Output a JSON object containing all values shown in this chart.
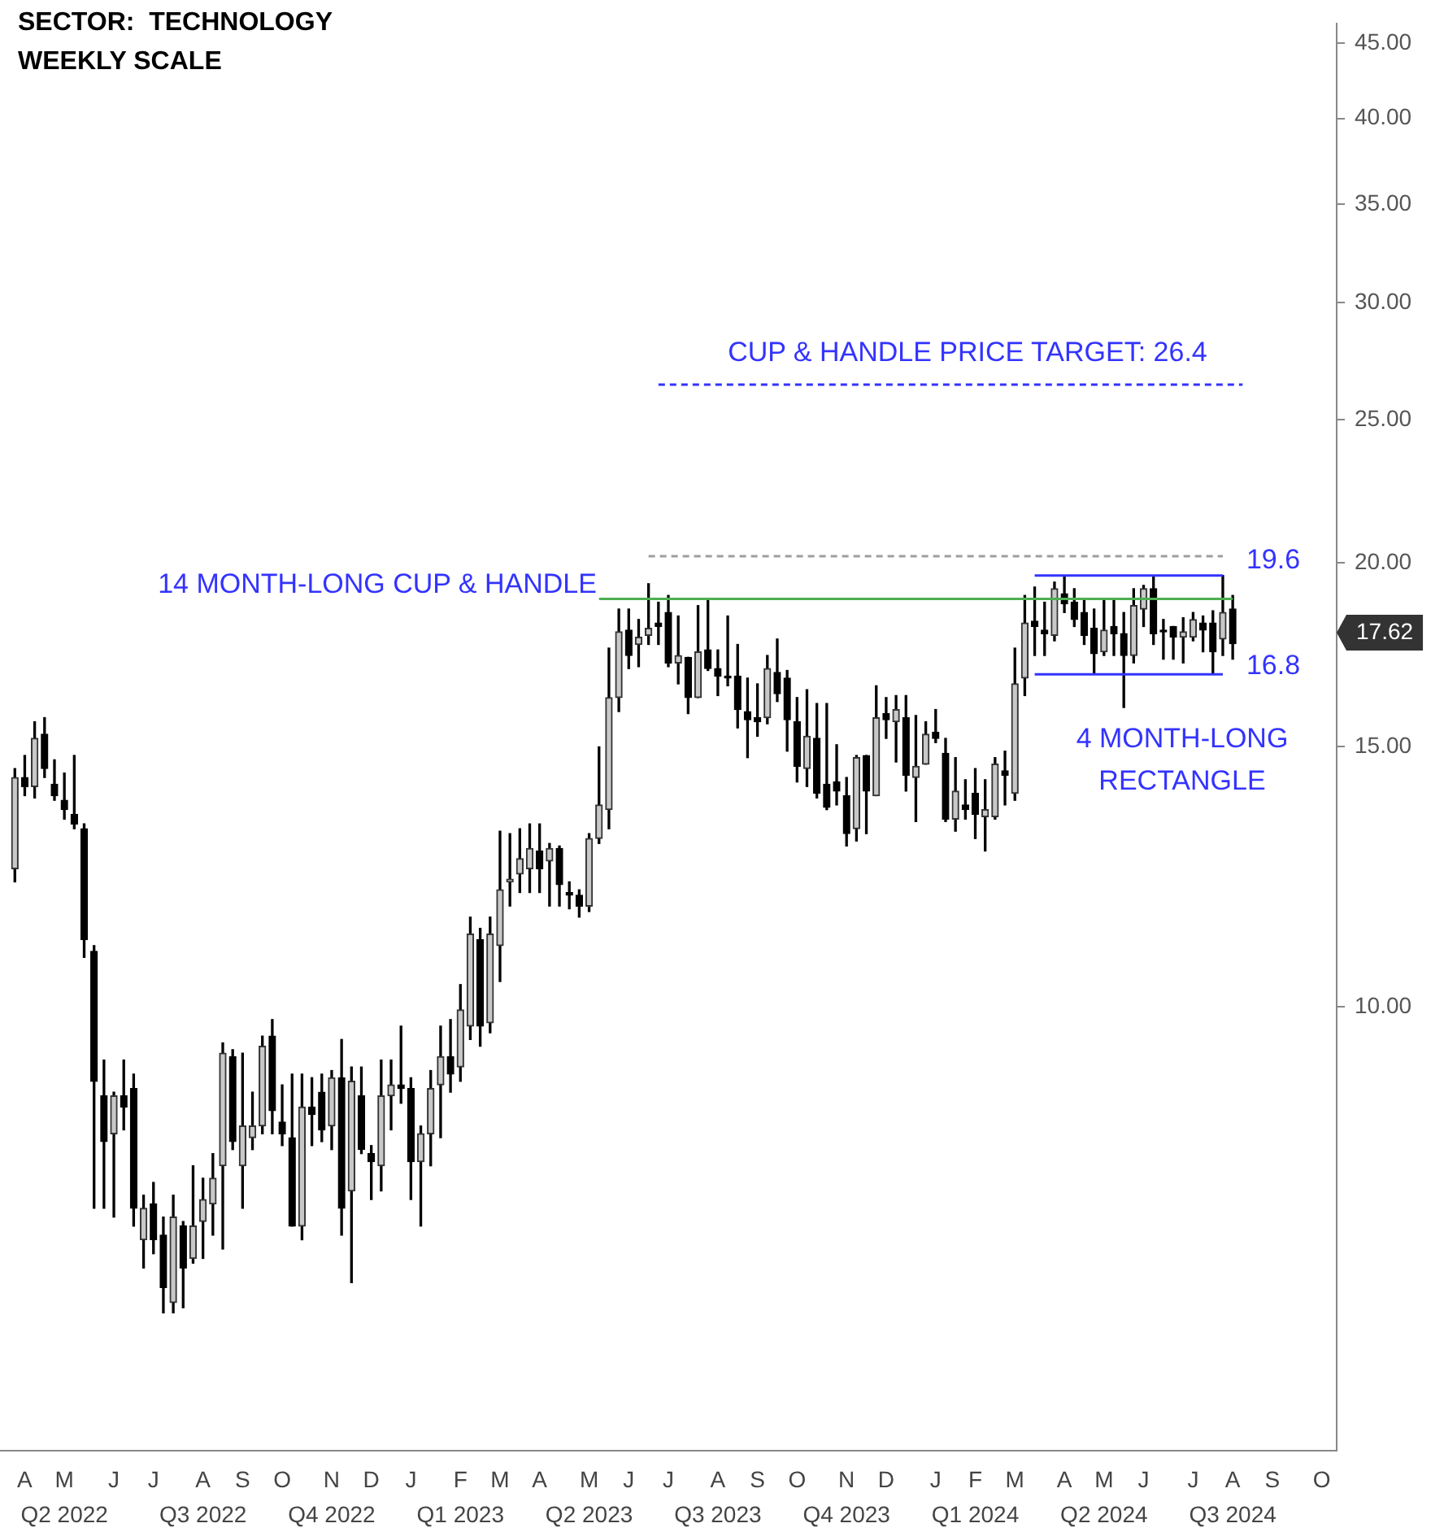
{
  "chart_data": {
    "type": "candlestick",
    "annotations": [
      "SECTOR:  TECHNOLOGY",
      "WEEKLY SCALE",
      "14 MONTH-LONG CUP & HANDLE",
      {
        "text": "CUP & HANDLE PRICE TARGET: 26.4",
        "y": 26.4
      },
      "19.6",
      "16.8",
      "4 MONTH-LONG RECTANGLE",
      "17.62",
      "Q2 2022",
      "Q3 2022",
      "Q4 2022",
      "Q1 2023",
      "Q2 2023",
      "Q3 2023",
      "Q4 2023",
      "Q1 2024",
      "Q2 2024",
      "Q3 2024"
    ],
    "categories": [
      null,
      null,
      "A",
      null,
      null,
      null,
      "M",
      null,
      null,
      null,
      null,
      "J",
      null,
      null,
      null,
      "J",
      null,
      null,
      null,
      null,
      "A",
      null,
      null,
      null,
      "S",
      null,
      null,
      null,
      "O",
      null,
      null,
      null,
      null,
      "N",
      null,
      null,
      null,
      "D",
      null,
      null,
      null,
      "J",
      null,
      null,
      null,
      null,
      "F",
      null,
      null,
      null,
      "M",
      null,
      null,
      null,
      "A",
      null,
      null,
      null,
      null,
      "M",
      null,
      null,
      null,
      "J",
      null,
      null,
      null,
      "J",
      null,
      null,
      null,
      null,
      "A",
      null,
      null,
      null,
      "S",
      null,
      null,
      null,
      "O",
      null,
      null,
      null,
      null,
      "N",
      null,
      null,
      null,
      "D",
      null,
      null,
      null,
      null,
      "J",
      null,
      null,
      null,
      "F",
      null,
      null,
      null,
      "M",
      null,
      null,
      null,
      null,
      "A",
      null,
      null,
      null,
      "M",
      null,
      null,
      null,
      "J",
      null,
      null,
      null,
      null,
      "J",
      null,
      null,
      null,
      "A",
      null,
      null,
      null,
      "S",
      null,
      null,
      null,
      null,
      "O",
      null
    ],
    "ohlc": [
      null,
      [
        12.4,
        14.5,
        12.15,
        14.3
      ],
      [
        14.3,
        14.8,
        13.9,
        14.1
      ],
      [
        14.1,
        15.6,
        13.85,
        15.2
      ],
      [
        15.3,
        15.7,
        14.3,
        14.5
      ],
      [
        14.15,
        14.7,
        13.8,
        13.9
      ],
      [
        13.8,
        14.4,
        13.4,
        13.6
      ],
      [
        13.5,
        14.8,
        13.2,
        13.3
      ],
      [
        13.2,
        13.3,
        10.8,
        11.1
      ],
      [
        10.9,
        11.0,
        7.3,
        8.9
      ],
      [
        8.7,
        9.2,
        7.3,
        8.1
      ],
      [
        8.2,
        8.75,
        7.2,
        8.7
      ],
      [
        8.7,
        9.2,
        8.25,
        8.55
      ],
      [
        8.8,
        9.0,
        7.1,
        7.3
      ],
      [
        6.95,
        7.45,
        6.65,
        7.3
      ],
      [
        7.35,
        7.6,
        6.8,
        6.95
      ],
      [
        7.0,
        7.2,
        6.2,
        6.45
      ],
      [
        6.3,
        7.45,
        6.2,
        7.2
      ],
      [
        7.1,
        7.15,
        6.25,
        6.65
      ],
      [
        6.75,
        7.8,
        6.7,
        7.1
      ],
      [
        7.15,
        7.65,
        6.75,
        7.4
      ],
      [
        7.35,
        7.95,
        7.0,
        7.65
      ],
      [
        7.8,
        9.45,
        6.85,
        9.3
      ],
      [
        9.25,
        9.35,
        8.0,
        8.1
      ],
      [
        7.8,
        9.3,
        7.3,
        8.3
      ],
      [
        8.15,
        8.75,
        8.0,
        8.3
      ],
      [
        8.3,
        9.55,
        8.2,
        9.4
      ],
      [
        9.55,
        9.8,
        8.2,
        8.5
      ],
      [
        8.35,
        8.85,
        8.05,
        8.2
      ],
      [
        8.15,
        9.0,
        7.1,
        7.1
      ],
      [
        7.1,
        9.0,
        6.95,
        8.55
      ],
      [
        8.55,
        8.95,
        8.05,
        8.45
      ],
      [
        8.75,
        9.0,
        8.1,
        8.25
      ],
      [
        8.3,
        9.05,
        8.0,
        8.95
      ],
      [
        8.95,
        9.5,
        7.0,
        7.3
      ],
      [
        7.5,
        9.1,
        6.5,
        8.9
      ],
      [
        8.7,
        9.1,
        7.95,
        8.0
      ],
      [
        7.95,
        8.05,
        7.4,
        7.85
      ],
      [
        7.8,
        9.2,
        7.5,
        8.7
      ],
      [
        8.7,
        9.2,
        8.25,
        8.85
      ],
      [
        8.85,
        9.7,
        8.6,
        8.8
      ],
      [
        8.8,
        8.95,
        7.4,
        7.85
      ],
      [
        7.85,
        8.3,
        7.1,
        8.2
      ],
      [
        8.2,
        9.05,
        7.8,
        8.8
      ],
      [
        8.85,
        9.7,
        8.15,
        9.25
      ],
      [
        9.25,
        9.8,
        8.75,
        9.0
      ],
      [
        9.1,
        10.35,
        8.9,
        9.95
      ],
      [
        9.7,
        11.5,
        9.5,
        11.2
      ],
      [
        11.1,
        11.3,
        9.4,
        9.7
      ],
      [
        9.75,
        11.5,
        9.6,
        11.2
      ],
      [
        11.0,
        13.15,
        10.4,
        12.0
      ],
      [
        12.15,
        13.1,
        11.7,
        12.2
      ],
      [
        12.3,
        13.2,
        11.95,
        12.6
      ],
      [
        12.4,
        13.3,
        11.95,
        12.8
      ],
      [
        12.75,
        13.3,
        11.95,
        12.4
      ],
      [
        12.55,
        12.9,
        11.7,
        12.8
      ],
      [
        12.8,
        12.85,
        11.7,
        12.1
      ],
      [
        11.95,
        12.15,
        11.65,
        11.9
      ],
      [
        11.9,
        12.0,
        11.5,
        11.7
      ],
      [
        11.7,
        13.1,
        11.6,
        13.0
      ],
      [
        13.0,
        15.0,
        12.9,
        13.7
      ],
      [
        13.6,
        17.5,
        13.2,
        16.2
      ],
      [
        16.2,
        18.6,
        15.85,
        17.95
      ],
      [
        18.0,
        18.6,
        16.95,
        17.3
      ],
      [
        17.6,
        18.3,
        17.0,
        17.8
      ],
      [
        17.85,
        19.35,
        17.6,
        18.05
      ],
      [
        18.2,
        18.8,
        17.6,
        18.1
      ],
      [
        18.5,
        19.0,
        17.0,
        17.1
      ],
      [
        17.1,
        18.4,
        16.55,
        17.3
      ],
      [
        17.25,
        17.25,
        15.8,
        16.2
      ],
      [
        16.2,
        18.7,
        16.2,
        17.4
      ],
      [
        17.45,
        18.9,
        16.9,
        16.95
      ],
      [
        16.95,
        17.45,
        16.25,
        16.75
      ],
      [
        16.75,
        18.4,
        16.5,
        16.7
      ],
      [
        16.75,
        17.6,
        15.45,
        15.9
      ],
      [
        15.85,
        16.7,
        14.75,
        15.65
      ],
      [
        15.7,
        16.55,
        15.25,
        15.6
      ],
      [
        15.7,
        17.3,
        15.55,
        16.95
      ],
      [
        16.85,
        17.75,
        16.1,
        16.3
      ],
      [
        16.7,
        16.9,
        14.9,
        15.65
      ],
      [
        15.6,
        16.2,
        14.2,
        14.55
      ],
      [
        14.5,
        16.4,
        14.1,
        15.25
      ],
      [
        15.2,
        16.05,
        13.85,
        13.95
      ],
      [
        14.15,
        16.05,
        13.6,
        13.65
      ],
      [
        14.2,
        15.05,
        13.7,
        14.0
      ],
      [
        13.9,
        14.3,
        12.85,
        13.1
      ],
      [
        13.2,
        14.8,
        12.95,
        14.75
      ],
      [
        14.8,
        14.8,
        13.1,
        14.0
      ],
      [
        13.9,
        16.5,
        13.9,
        15.7
      ],
      [
        15.8,
        16.2,
        15.2,
        15.65
      ],
      [
        15.6,
        16.25,
        14.65,
        15.9
      ],
      [
        15.7,
        16.25,
        14.0,
        14.35
      ],
      [
        14.3,
        15.75,
        13.35,
        14.55
      ],
      [
        14.6,
        15.6,
        14.6,
        15.3
      ],
      [
        15.35,
        15.9,
        15.1,
        15.2
      ],
      [
        14.85,
        15.2,
        13.35,
        13.4
      ],
      [
        13.4,
        14.75,
        13.15,
        14.0
      ],
      [
        13.7,
        14.25,
        13.4,
        13.6
      ],
      [
        13.95,
        14.5,
        13.0,
        13.5
      ],
      [
        13.45,
        14.25,
        12.75,
        13.6
      ],
      [
        13.45,
        14.75,
        13.4,
        14.6
      ],
      [
        14.45,
        14.9,
        13.7,
        14.35
      ],
      [
        13.95,
        17.5,
        13.8,
        16.55
      ],
      [
        16.7,
        19.0,
        16.25,
        18.2
      ],
      [
        18.25,
        19.25,
        17.3,
        18.1
      ],
      [
        18.0,
        18.8,
        17.3,
        17.9
      ],
      [
        17.85,
        19.4,
        17.7,
        19.2
      ],
      [
        19.05,
        19.6,
        18.5,
        18.75
      ],
      [
        18.8,
        19.2,
        18.1,
        18.3
      ],
      [
        18.5,
        18.9,
        17.6,
        17.85
      ],
      [
        18.05,
        18.6,
        16.8,
        17.35
      ],
      [
        17.4,
        18.9,
        17.3,
        18.0
      ],
      [
        18.1,
        18.9,
        17.3,
        17.9
      ],
      [
        17.9,
        18.5,
        15.95,
        17.3
      ],
      [
        17.3,
        19.2,
        17.1,
        18.7
      ],
      [
        18.6,
        19.3,
        18.1,
        19.2
      ],
      [
        19.2,
        19.6,
        17.6,
        17.9
      ],
      [
        18.0,
        18.3,
        17.2,
        17.95
      ],
      [
        18.1,
        18.1,
        17.2,
        17.8
      ],
      [
        17.8,
        18.35,
        17.1,
        17.95
      ],
      [
        17.8,
        18.5,
        17.7,
        18.3
      ],
      [
        18.2,
        18.4,
        17.4,
        18.0
      ],
      [
        18.2,
        18.55,
        16.8,
        17.4
      ],
      [
        17.75,
        19.6,
        17.3,
        18.5
      ],
      [
        18.6,
        19.0,
        17.2,
        17.62
      ],
      null,
      null,
      null,
      null,
      null,
      null,
      null,
      null,
      null,
      null
    ],
    "series": [
      {
        "type": "line",
        "color": "#4caf50",
        "line_style": "solid",
        "values": [
          null,
          null,
          null,
          null,
          null,
          null,
          null,
          null,
          null,
          null,
          null,
          null,
          null,
          null,
          null,
          null,
          null,
          null,
          null,
          null,
          null,
          null,
          null,
          null,
          null,
          null,
          null,
          null,
          null,
          null,
          null,
          null,
          null,
          null,
          null,
          null,
          null,
          null,
          null,
          null,
          null,
          null,
          null,
          null,
          null,
          null,
          null,
          null,
          null,
          null,
          null,
          null,
          null,
          null,
          null,
          null,
          null,
          null,
          null,
          null,
          18.9,
          18.9,
          18.9,
          18.9,
          18.9,
          18.9,
          18.9,
          18.9,
          18.9,
          18.9,
          18.9,
          18.9,
          18.9,
          18.9,
          18.9,
          18.9,
          18.9,
          18.9,
          18.9,
          18.9,
          18.9,
          18.9,
          18.9,
          18.9,
          18.9,
          18.9,
          18.9,
          18.9,
          18.9,
          18.9,
          18.9,
          18.9,
          18.9,
          18.9,
          18.9,
          18.9,
          18.9,
          18.9,
          18.9,
          18.9,
          18.9,
          18.9,
          18.9,
          18.9,
          18.9,
          18.9,
          18.9,
          18.9,
          18.9,
          18.9,
          18.9,
          18.9,
          18.9,
          18.9,
          18.9,
          18.9,
          18.9,
          18.9,
          18.9,
          18.9,
          18.9,
          18.9,
          18.9,
          18.9,
          18.9,
          null,
          null,
          null,
          null,
          null,
          null,
          null,
          null,
          null,
          null
        ]
      },
      {
        "type": "line",
        "color": "#9e9e9e",
        "line_style": "dashed",
        "values": [
          null,
          null,
          null,
          null,
          null,
          null,
          null,
          null,
          null,
          null,
          null,
          null,
          null,
          null,
          null,
          null,
          null,
          null,
          null,
          null,
          null,
          null,
          null,
          null,
          null,
          null,
          null,
          null,
          null,
          null,
          null,
          null,
          null,
          null,
          null,
          null,
          null,
          null,
          null,
          null,
          null,
          null,
          null,
          null,
          null,
          null,
          null,
          null,
          null,
          null,
          null,
          null,
          null,
          null,
          null,
          null,
          null,
          null,
          null,
          null,
          null,
          null,
          null,
          null,
          null,
          20.2,
          20.2,
          20.2,
          20.2,
          20.2,
          20.2,
          20.2,
          20.2,
          20.2,
          20.2,
          20.2,
          20.2,
          20.2,
          20.2,
          20.2,
          20.2,
          20.2,
          20.2,
          20.2,
          20.2,
          20.2,
          20.2,
          20.2,
          20.2,
          20.2,
          20.2,
          20.2,
          20.2,
          20.2,
          20.2,
          20.2,
          20.2,
          20.2,
          20.2,
          20.2,
          20.2,
          20.2,
          20.2,
          20.2,
          20.2,
          20.2,
          20.2,
          20.2,
          20.2,
          20.2,
          20.2,
          20.2,
          20.2,
          20.2,
          20.2,
          20.2,
          20.2,
          20.2,
          20.2,
          20.2,
          20.2,
          20.2,
          20.2,
          20.2,
          null,
          null,
          null,
          null,
          null,
          null,
          null,
          null,
          null,
          null,
          null
        ]
      },
      {
        "type": "line",
        "color": "#3333ff",
        "line_style": "dashed",
        "values": [
          null,
          null,
          null,
          null,
          null,
          null,
          null,
          null,
          null,
          null,
          null,
          null,
          null,
          null,
          null,
          null,
          null,
          null,
          null,
          null,
          null,
          null,
          null,
          null,
          null,
          null,
          null,
          null,
          null,
          null,
          null,
          null,
          null,
          null,
          null,
          null,
          null,
          null,
          null,
          null,
          null,
          null,
          null,
          null,
          null,
          null,
          null,
          null,
          null,
          null,
          null,
          null,
          null,
          null,
          null,
          null,
          null,
          null,
          null,
          null,
          null,
          null,
          null,
          null,
          null,
          null,
          26.4,
          26.4,
          26.4,
          26.4,
          26.4,
          26.4,
          26.4,
          26.4,
          26.4,
          26.4,
          26.4,
          26.4,
          26.4,
          26.4,
          26.4,
          26.4,
          26.4,
          26.4,
          26.4,
          26.4,
          26.4,
          26.4,
          26.4,
          26.4,
          26.4,
          26.4,
          26.4,
          26.4,
          26.4,
          26.4,
          26.4,
          26.4,
          26.4,
          26.4,
          26.4,
          26.4,
          26.4,
          26.4,
          26.4,
          26.4,
          26.4,
          26.4,
          26.4,
          26.4,
          26.4,
          26.4,
          26.4,
          26.4,
          26.4,
          26.4,
          26.4,
          26.4,
          26.4,
          26.4,
          26.4,
          26.4,
          26.4,
          26.4,
          26.4,
          26.4,
          null,
          null,
          null,
          null,
          null,
          null,
          null,
          null,
          null
        ]
      },
      {
        "type": "line",
        "color": "#3333ff",
        "line_style": "solid",
        "values": [
          null,
          null,
          null,
          null,
          null,
          null,
          null,
          null,
          null,
          null,
          null,
          null,
          null,
          null,
          null,
          null,
          null,
          null,
          null,
          null,
          null,
          null,
          null,
          null,
          null,
          null,
          null,
          null,
          null,
          null,
          null,
          null,
          null,
          null,
          null,
          null,
          null,
          null,
          null,
          null,
          null,
          null,
          null,
          null,
          null,
          null,
          null,
          null,
          null,
          null,
          null,
          null,
          null,
          null,
          null,
          null,
          null,
          null,
          null,
          null,
          null,
          null,
          null,
          null,
          null,
          null,
          null,
          null,
          null,
          null,
          null,
          null,
          null,
          null,
          null,
          null,
          null,
          null,
          null,
          null,
          null,
          null,
          null,
          null,
          null,
          null,
          null,
          null,
          null,
          null,
          null,
          null,
          null,
          null,
          null,
          null,
          null,
          null,
          null,
          null,
          null,
          null,
          null,
          null,
          19.6,
          19.6,
          19.6,
          19.6,
          19.6,
          19.6,
          19.6,
          19.6,
          19.6,
          19.6,
          19.6,
          19.6,
          19.6,
          19.6,
          19.6,
          19.6,
          19.6,
          19.6,
          19.6,
          19.6,
          null,
          null,
          null,
          null,
          null,
          null,
          null,
          null,
          null,
          null,
          null
        ]
      },
      {
        "type": "line",
        "color": "#3333ff",
        "line_style": "solid",
        "values": [
          null,
          null,
          null,
          null,
          null,
          null,
          null,
          null,
          null,
          null,
          null,
          null,
          null,
          null,
          null,
          null,
          null,
          null,
          null,
          null,
          null,
          null,
          null,
          null,
          null,
          null,
          null,
          null,
          null,
          null,
          null,
          null,
          null,
          null,
          null,
          null,
          null,
          null,
          null,
          null,
          null,
          null,
          null,
          null,
          null,
          null,
          null,
          null,
          null,
          null,
          null,
          null,
          null,
          null,
          null,
          null,
          null,
          null,
          null,
          null,
          null,
          null,
          null,
          null,
          null,
          null,
          null,
          null,
          null,
          null,
          null,
          null,
          null,
          null,
          null,
          null,
          null,
          null,
          null,
          null,
          null,
          null,
          null,
          null,
          null,
          null,
          null,
          null,
          null,
          null,
          null,
          null,
          null,
          null,
          null,
          null,
          null,
          null,
          null,
          null,
          null,
          null,
          null,
          null,
          16.8,
          16.8,
          16.8,
          16.8,
          16.8,
          16.8,
          16.8,
          16.8,
          16.8,
          16.8,
          16.8,
          16.8,
          16.8,
          16.8,
          16.8,
          16.8,
          16.8,
          16.8,
          16.8,
          16.8,
          null,
          null,
          null,
          null,
          null,
          null,
          null,
          null,
          null,
          null,
          null
        ]
      }
    ],
    "log": "y",
    "legend": false,
    "ylim": [
      5.0,
      46.4
    ],
    "yticks": [
      {
        "value": 10,
        "label": "10.00"
      },
      {
        "value": 15,
        "label": "15.00"
      },
      {
        "value": 20,
        "label": "20.00"
      },
      {
        "value": 25,
        "label": "25.00"
      },
      {
        "value": 30,
        "label": "30.00"
      },
      {
        "value": 35,
        "label": "35.00"
      },
      {
        "value": 40,
        "label": "40.00"
      },
      {
        "value": 45,
        "label": "45.00"
      }
    ]
  }
}
